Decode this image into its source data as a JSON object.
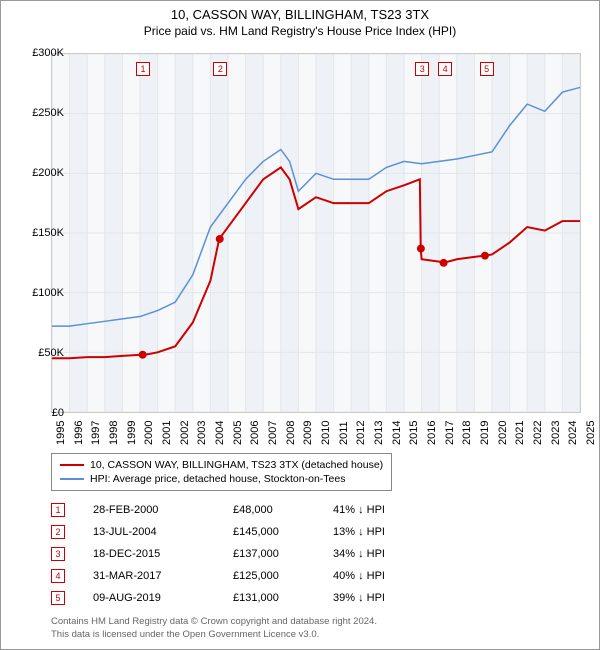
{
  "header": {
    "title": "10, CASSON WAY, BILLINGHAM, TS23 3TX",
    "subtitle": "Price paid vs. HM Land Registry's House Price Index (HPI)"
  },
  "chart": {
    "type": "line",
    "background_color": "#f7f8fa",
    "grid_color": "#e2e6ea",
    "alt_band_color": "#eef2f6",
    "ylim": [
      0,
      300000
    ],
    "ytick_step": 50000,
    "y_ticks": [
      "£0",
      "£50K",
      "£100K",
      "£150K",
      "£200K",
      "£250K",
      "£300K"
    ],
    "x_years": [
      1995,
      1996,
      1997,
      1998,
      1999,
      2000,
      2001,
      2002,
      2003,
      2004,
      2005,
      2006,
      2007,
      2008,
      2009,
      2010,
      2011,
      2012,
      2013,
      2014,
      2015,
      2016,
      2017,
      2018,
      2019,
      2020,
      2021,
      2022,
      2023,
      2024,
      2025
    ],
    "series": [
      {
        "name": "property",
        "label": "10, CASSON WAY, BILLINGHAM, TS23 3TX (detached house)",
        "color": "#cc0000",
        "line_width": 2,
        "data": [
          [
            1995,
            45000
          ],
          [
            1996,
            45000
          ],
          [
            1997,
            46000
          ],
          [
            1998,
            46000
          ],
          [
            1999,
            47000
          ],
          [
            2000,
            48000
          ],
          [
            2000.3,
            48000
          ],
          [
            2001,
            50000
          ],
          [
            2002,
            55000
          ],
          [
            2003,
            75000
          ],
          [
            2004,
            110000
          ],
          [
            2004.5,
            145000
          ],
          [
            2005,
            155000
          ],
          [
            2006,
            175000
          ],
          [
            2007,
            195000
          ],
          [
            2008,
            205000
          ],
          [
            2008.5,
            195000
          ],
          [
            2009,
            170000
          ],
          [
            2010,
            180000
          ],
          [
            2011,
            175000
          ],
          [
            2012,
            175000
          ],
          [
            2013,
            175000
          ],
          [
            2014,
            185000
          ],
          [
            2015,
            190000
          ],
          [
            2015.9,
            195000
          ],
          [
            2015.95,
            137000
          ],
          [
            2016,
            128000
          ],
          [
            2017,
            126000
          ],
          [
            2017.25,
            125000
          ],
          [
            2018,
            128000
          ],
          [
            2019,
            130000
          ],
          [
            2019.6,
            131000
          ],
          [
            2020,
            132000
          ],
          [
            2021,
            142000
          ],
          [
            2022,
            155000
          ],
          [
            2023,
            152000
          ],
          [
            2024,
            160000
          ],
          [
            2025,
            160000
          ]
        ]
      },
      {
        "name": "hpi",
        "label": "HPI: Average price, detached house, Stockton-on-Tees",
        "color": "#5b8fd6",
        "line_width": 1.5,
        "data": [
          [
            1995,
            72000
          ],
          [
            1996,
            72000
          ],
          [
            1997,
            74000
          ],
          [
            1998,
            76000
          ],
          [
            1999,
            78000
          ],
          [
            2000,
            80000
          ],
          [
            2001,
            85000
          ],
          [
            2002,
            92000
          ],
          [
            2003,
            115000
          ],
          [
            2004,
            155000
          ],
          [
            2005,
            175000
          ],
          [
            2006,
            195000
          ],
          [
            2007,
            210000
          ],
          [
            2008,
            220000
          ],
          [
            2008.5,
            210000
          ],
          [
            2009,
            185000
          ],
          [
            2010,
            200000
          ],
          [
            2011,
            195000
          ],
          [
            2012,
            195000
          ],
          [
            2013,
            195000
          ],
          [
            2014,
            205000
          ],
          [
            2015,
            210000
          ],
          [
            2016,
            208000
          ],
          [
            2017,
            210000
          ],
          [
            2018,
            212000
          ],
          [
            2019,
            215000
          ],
          [
            2020,
            218000
          ],
          [
            2021,
            240000
          ],
          [
            2022,
            258000
          ],
          [
            2023,
            252000
          ],
          [
            2024,
            268000
          ],
          [
            2025,
            272000
          ]
        ]
      }
    ],
    "sale_markers": [
      {
        "n": "1",
        "year": 2000.15,
        "price": 48000
      },
      {
        "n": "2",
        "year": 2004.53,
        "price": 145000
      },
      {
        "n": "3",
        "year": 2015.96,
        "price": 137000
      },
      {
        "n": "4",
        "year": 2017.25,
        "price": 125000
      },
      {
        "n": "5",
        "year": 2019.6,
        "price": 131000
      }
    ],
    "sale_dot_color": "#cc0000",
    "sale_dot_radius": 4
  },
  "legend": {
    "items": [
      {
        "color": "#cc0000",
        "label": "10, CASSON WAY, BILLINGHAM, TS23 3TX (detached house)"
      },
      {
        "color": "#5b8fd6",
        "label": "HPI: Average price, detached house, Stockton-on-Tees"
      }
    ]
  },
  "sales_table": {
    "rows": [
      {
        "n": "1",
        "date": "28-FEB-2000",
        "price": "£48,000",
        "pct": "41% ↓ HPI"
      },
      {
        "n": "2",
        "date": "13-JUL-2004",
        "price": "£145,000",
        "pct": "13% ↓ HPI"
      },
      {
        "n": "3",
        "date": "18-DEC-2015",
        "price": "£137,000",
        "pct": "34% ↓ HPI"
      },
      {
        "n": "4",
        "date": "31-MAR-2017",
        "price": "£125,000",
        "pct": "40% ↓ HPI"
      },
      {
        "n": "5",
        "date": "09-AUG-2019",
        "price": "£131,000",
        "pct": "39% ↓ HPI"
      }
    ]
  },
  "footer": {
    "line1": "Contains HM Land Registry data © Crown copyright and database right 2024.",
    "line2": "This data is licensed under the Open Government Licence v3.0."
  }
}
